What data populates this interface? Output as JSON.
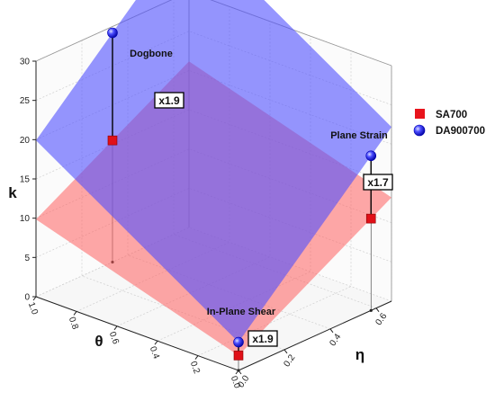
{
  "chart_data": {
    "type": "3d-surface-scatter",
    "title": "",
    "axes": {
      "k": {
        "label": "k",
        "range": [
          0,
          30
        ],
        "ticks": [
          "0",
          "5",
          "10",
          "15",
          "20",
          "25",
          "30"
        ]
      },
      "theta": {
        "label": "θ",
        "range": [
          0,
          1
        ],
        "ticks": [
          "0.0",
          "0.2",
          "0.4",
          "0.6",
          "0.8",
          "1.0"
        ]
      },
      "eta": {
        "label": "η",
        "range": [
          0,
          0.6667
        ],
        "ticks": [
          "0.0",
          "0.2",
          "0.4",
          "0.6"
        ]
      }
    },
    "grid": true,
    "legend": {
      "position": "right",
      "entries": [
        {
          "name": "SA700",
          "marker": "square",
          "color": "#e8141c"
        },
        {
          "name": "DA900700",
          "marker": "sphere",
          "color": "#1a1ae6"
        }
      ]
    },
    "planes": [
      {
        "series": "SA700",
        "color": "#ff6060",
        "opacity": 0.55
      },
      {
        "series": "DA900700",
        "color": "#5050ff",
        "opacity": 0.6
      }
    ],
    "points": [
      {
        "label": "Dogbone",
        "theta": 1.0,
        "eta": 0.3333,
        "SA700": 15.5,
        "DA900700": 29.2,
        "ratio": "x1.9"
      },
      {
        "label": "Plane Strain",
        "theta": 0.0,
        "eta": 0.5774,
        "SA700": 11.7,
        "DA900700": 19.7,
        "ratio": "x1.7"
      },
      {
        "label": "In-Plane Shear",
        "theta": 0.0,
        "eta": 0.0,
        "SA700": 1.9,
        "DA900700": 3.6,
        "ratio": "x1.9"
      }
    ]
  }
}
